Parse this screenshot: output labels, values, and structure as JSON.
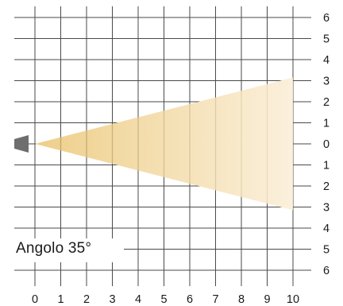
{
  "label": "Angolo 35°",
  "chart_data": {
    "type": "diagram",
    "x_ticks": [
      "0",
      "1",
      "2",
      "3",
      "4",
      "5",
      "6",
      "7",
      "8",
      "9",
      "10"
    ],
    "y_ticks": [
      "6",
      "5",
      "4",
      "3",
      "2",
      "1",
      "0",
      "1",
      "2",
      "3",
      "4",
      "5",
      "6"
    ],
    "beam": {
      "origin": [
        0,
        0
      ],
      "end_distance": 10,
      "half_width_at_end": 3.15,
      "angle_deg": 35
    },
    "colors": {
      "beam_near": "#eecf8a",
      "beam_far": "#fbf0dc",
      "grid": "#4a4a4a",
      "source": "#6e6e6e"
    }
  }
}
